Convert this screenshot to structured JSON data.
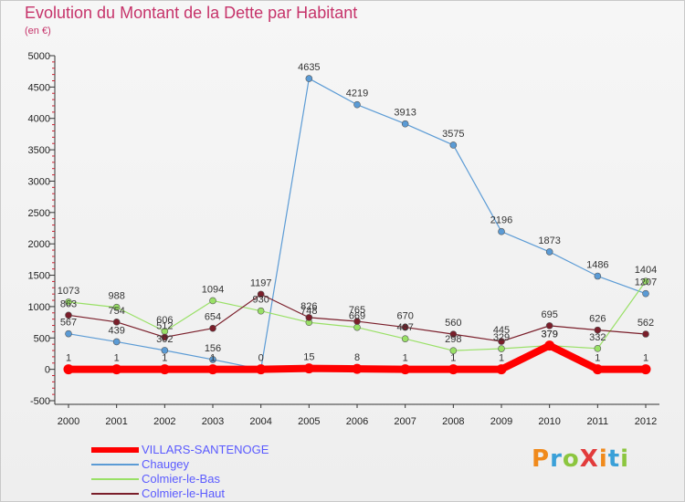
{
  "title": "Evolution du Montant de la Dette par Habitant",
  "subtitle": "(en €)",
  "logo": {
    "text": "ProXiti",
    "colors": [
      "#f08a1c",
      "#3aa0d8",
      "#8cc63f",
      "#e23b3b",
      "#f08a1c",
      "#3aa0d8",
      "#8cc63f"
    ]
  },
  "chart_data": {
    "type": "line",
    "title": "Evolution du Montant de la Dette par Habitant",
    "ylabel": "(en €)",
    "ylim": [
      -500,
      5000
    ],
    "yticks": [
      -500,
      0,
      500,
      1000,
      1500,
      2000,
      2500,
      3000,
      3500,
      4000,
      4500,
      5000
    ],
    "categories": [
      "2000",
      "2001",
      "2002",
      "2003",
      "2004",
      "2005",
      "2006",
      "2007",
      "2008",
      "2009",
      "2010",
      "2011",
      "2012"
    ],
    "grid": false,
    "legend": "bottom-left",
    "series": [
      {
        "name": "VILLARS-SANTENOGE",
        "color": "#ff0000",
        "values": [
          1,
          1,
          1,
          1,
          0,
          15,
          8,
          1,
          1,
          1,
          379,
          1,
          1
        ],
        "labels": [
          "1",
          "1",
          "1",
          "1",
          "0",
          "15",
          "8",
          "1",
          "1",
          "1",
          "379",
          "1",
          "1"
        ]
      },
      {
        "name": "Chaugey",
        "color": "#5b9bd5",
        "values": [
          567,
          439,
          302,
          156,
          0,
          4635,
          4219,
          3913,
          3575,
          2196,
          1873,
          1486,
          1207
        ],
        "labels": [
          "567",
          "439",
          "302",
          "156",
          "",
          "4635",
          "4219",
          "3913",
          "3575",
          "2196",
          "1873",
          "1486",
          "1207"
        ]
      },
      {
        "name": "Colmier-le-Bas",
        "color": "#99e066",
        "values": [
          1073,
          988,
          606,
          1094,
          930,
          748,
          669,
          487,
          298,
          329,
          379,
          332,
          1404
        ],
        "labels": [
          "1073",
          "988",
          "606",
          "1094",
          "930",
          "748",
          "669",
          "487",
          "298",
          "329",
          "379",
          "332",
          "1404"
        ]
      },
      {
        "name": "Colmier-le-Haut",
        "color": "#7a1e2a",
        "values": [
          863,
          754,
          512,
          654,
          1197,
          826,
          765,
          670,
          560,
          445,
          695,
          626,
          562
        ],
        "labels": [
          "863",
          "754",
          "512",
          "654",
          "1197",
          "826",
          "765",
          "670",
          "560",
          "445",
          "695",
          "626",
          "562"
        ]
      }
    ]
  }
}
